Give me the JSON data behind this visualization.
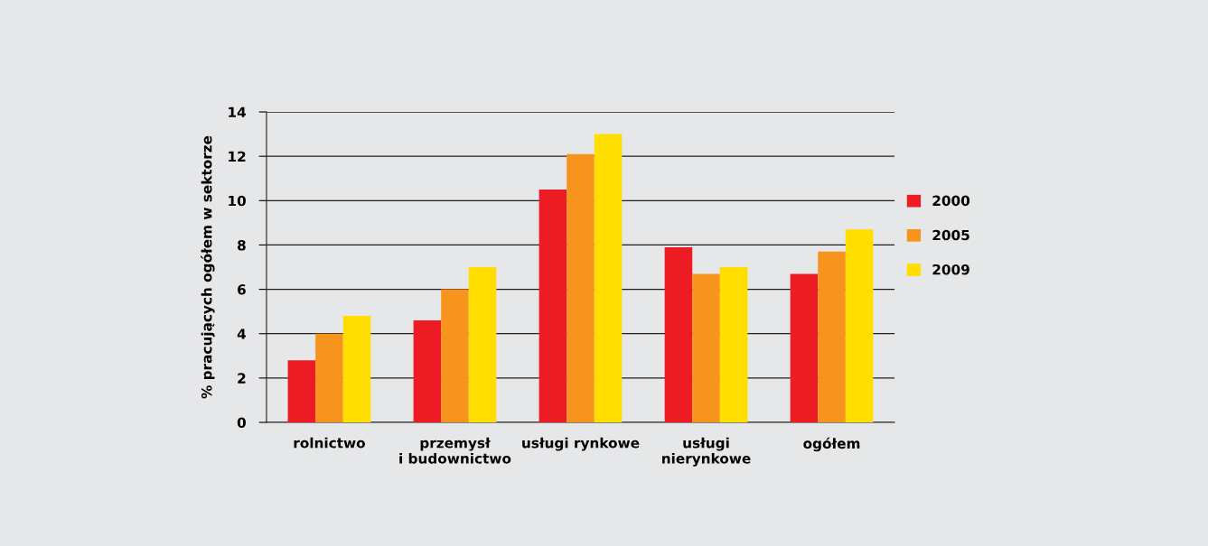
{
  "chart_data": {
    "type": "bar",
    "ylabel": "% pracujących ogółem w sektorze",
    "categories": [
      "rolnictwo",
      "przemysł\ni budownictwo",
      "usługi rynkowe",
      "usługi\nnierynkowe",
      "ogółem"
    ],
    "series": [
      {
        "name": "2000",
        "color": "#ed1c24",
        "values": [
          2.8,
          4.6,
          10.5,
          7.9,
          6.7
        ]
      },
      {
        "name": "2005",
        "color": "#f7941d",
        "values": [
          4.0,
          6.0,
          12.1,
          6.7,
          7.7
        ]
      },
      {
        "name": "2009",
        "color": "#ffde00",
        "values": [
          4.8,
          7.0,
          13.0,
          7.0,
          8.7
        ]
      }
    ],
    "ylim": [
      0,
      14
    ],
    "yticks": [
      0,
      2,
      4,
      6,
      8,
      10,
      12,
      14
    ],
    "grid": "y",
    "legend": "right"
  }
}
